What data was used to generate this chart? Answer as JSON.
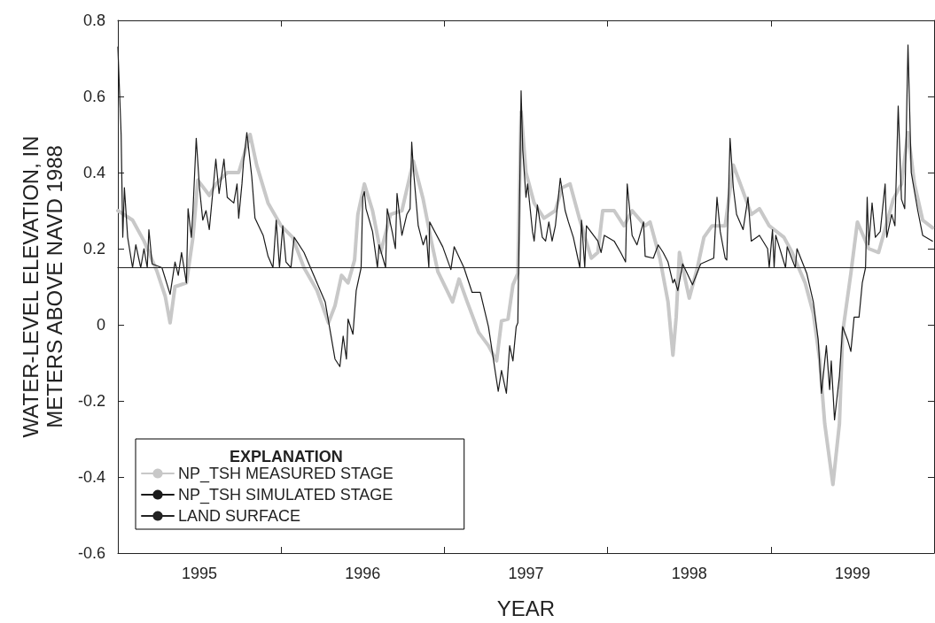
{
  "chart_data": {
    "type": "line",
    "xlabel": "YEAR",
    "ylabel": "WATER-LEVEL ELEVATION, IN METERS ABOVE NAVD 1988",
    "legend_title": "EXPLANATION",
    "legend": "bottom left",
    "grid": false,
    "xlim": [
      1995,
      2000
    ],
    "xticks": [
      {
        "value": 1995.5,
        "label": "1995"
      },
      {
        "value": 1996.5,
        "label": "1996"
      },
      {
        "value": 1997.5,
        "label": "1997"
      },
      {
        "value": 1998.5,
        "label": "1998"
      },
      {
        "value": 1999.5,
        "label": "1999"
      },
      {
        "value": 1996,
        "label": null
      },
      {
        "value": 1997,
        "label": null
      },
      {
        "value": 1998,
        "label": null
      },
      {
        "value": 1999,
        "label": null
      }
    ],
    "ylim": [
      -0.6,
      0.8
    ],
    "yticks": [
      -0.6,
      -0.4,
      -0.2,
      0,
      0.2,
      0.4,
      0.6,
      0.8
    ],
    "series": [
      {
        "name": "NP_TSH MEASURED STAGE",
        "color": "#c8c8c8",
        "x": [
          1995.0,
          1995.09,
          1995.16,
          1995.24,
          1995.29,
          1995.32,
          1995.35,
          1995.42,
          1995.46,
          1995.49,
          1995.56,
          1995.6,
          1995.67,
          1995.74,
          1995.81,
          1995.85,
          1995.92,
          1996.0,
          1996.07,
          1996.14,
          1996.22,
          1996.29,
          1996.33,
          1996.37,
          1996.41,
          1996.45,
          1996.47,
          1996.51,
          1996.56,
          1996.61,
          1996.67,
          1996.74,
          1996.81,
          1996.87,
          1996.92,
          1996.96,
          1997.05,
          1997.09,
          1997.14,
          1997.21,
          1997.27,
          1997.32,
          1997.35,
          1997.39,
          1997.42,
          1997.45,
          1997.47,
          1997.5,
          1997.55,
          1997.61,
          1997.68,
          1997.72,
          1997.77,
          1997.83,
          1997.9,
          1997.94,
          1997.97,
          1998.04,
          1998.1,
          1998.15,
          1998.23,
          1998.26,
          1998.32,
          1998.37,
          1998.4,
          1998.42,
          1998.44,
          1998.5,
          1998.55,
          1998.59,
          1998.64,
          1998.72,
          1998.77,
          1998.83,
          1998.88,
          1998.93,
          1998.99,
          1999.08,
          1999.13,
          1999.21,
          1999.26,
          1999.3,
          1999.33,
          1999.38,
          1999.42,
          1999.44,
          1999.49,
          1999.53,
          1999.6,
          1999.66,
          1999.75,
          1999.8,
          1999.84,
          1999.88,
          1999.93,
          1999.99
        ],
        "values": [
          0.3,
          0.275,
          0.22,
          0.14,
          0.075,
          0.005,
          0.1,
          0.11,
          0.23,
          0.38,
          0.34,
          0.37,
          0.4,
          0.4,
          0.5,
          0.42,
          0.32,
          0.26,
          0.23,
          0.15,
          0.09,
          0.005,
          0.05,
          0.13,
          0.11,
          0.17,
          0.29,
          0.37,
          0.3,
          0.19,
          0.29,
          0.3,
          0.43,
          0.33,
          0.22,
          0.14,
          0.06,
          0.12,
          0.06,
          -0.02,
          -0.055,
          -0.095,
          0.01,
          0.015,
          0.105,
          0.135,
          0.56,
          0.4,
          0.32,
          0.28,
          0.3,
          0.36,
          0.37,
          0.275,
          0.175,
          0.19,
          0.3,
          0.3,
          0.26,
          0.3,
          0.26,
          0.27,
          0.175,
          0.06,
          -0.08,
          0.02,
          0.19,
          0.07,
          0.15,
          0.23,
          0.26,
          0.26,
          0.42,
          0.35,
          0.29,
          0.305,
          0.26,
          0.23,
          0.19,
          0.11,
          0.03,
          -0.095,
          -0.26,
          -0.42,
          -0.26,
          -0.02,
          0.135,
          0.27,
          0.2,
          0.19,
          0.33,
          0.37,
          0.505,
          0.37,
          0.275,
          0.255
        ]
      },
      {
        "name": "NP_TSH SIMULATED STAGE",
        "color": "#1a1a1a",
        "x": [
          1995.0,
          1995.02,
          1995.03,
          1995.04,
          1995.06,
          1995.09,
          1995.11,
          1995.14,
          1995.16,
          1995.18,
          1995.19,
          1995.21,
          1995.27,
          1995.32,
          1995.35,
          1995.37,
          1995.39,
          1995.42,
          1995.43,
          1995.45,
          1995.46,
          1995.48,
          1995.5,
          1995.52,
          1995.54,
          1995.56,
          1995.6,
          1995.62,
          1995.65,
          1995.67,
          1995.71,
          1995.73,
          1995.74,
          1995.76,
          1995.77,
          1995.79,
          1995.82,
          1995.84,
          1995.89,
          1995.92,
          1995.95,
          1995.97,
          1995.99,
          1996.01,
          1996.03,
          1996.06,
          1996.08,
          1996.14,
          1996.22,
          1996.27,
          1996.33,
          1996.36,
          1996.38,
          1996.4,
          1996.41,
          1996.44,
          1996.46,
          1996.49,
          1996.5,
          1996.51,
          1996.52,
          1996.56,
          1996.59,
          1996.6,
          1996.64,
          1996.65,
          1996.68,
          1996.7,
          1996.71,
          1996.74,
          1996.77,
          1996.79,
          1996.8,
          1996.81,
          1996.84,
          1996.87,
          1996.89,
          1996.905,
          1996.91,
          1996.99,
          1997.04,
          1997.06,
          1997.12,
          1997.17,
          1997.22,
          1997.27,
          1997.3,
          1997.33,
          1997.35,
          1997.38,
          1997.4,
          1997.42,
          1997.44,
          1997.45,
          1997.47,
          1997.48,
          1997.5,
          1997.51,
          1997.54,
          1997.55,
          1997.57,
          1997.6,
          1997.62,
          1997.64,
          1997.66,
          1997.68,
          1997.71,
          1997.74,
          1997.76,
          1997.79,
          1997.83,
          1997.84,
          1997.86,
          1997.87,
          1997.94,
          1997.96,
          1997.98,
          1998.04,
          1998.08,
          1998.11,
          1998.12,
          1998.15,
          1998.18,
          1998.22,
          1998.23,
          1998.28,
          1998.31,
          1998.34,
          1998.37,
          1998.4,
          1998.41,
          1998.43,
          1998.46,
          1998.52,
          1998.57,
          1998.65,
          1998.67,
          1998.69,
          1998.72,
          1998.73,
          1998.75,
          1998.77,
          1998.79,
          1998.83,
          1998.86,
          1998.88,
          1998.93,
          1998.98,
          1998.99,
          1999.01,
          1999.02,
          1999.03,
          1999.09,
          1999.1,
          1999.15,
          1999.16,
          1999.22,
          1999.26,
          1999.29,
          1999.31,
          1999.34,
          1999.36,
          1999.37,
          1999.39,
          1999.42,
          1999.44,
          1999.47,
          1999.49,
          1999.51,
          1999.54,
          1999.56,
          1999.58,
          1999.59,
          1999.6,
          1999.62,
          1999.64,
          1999.67,
          1999.7,
          1999.71,
          1999.74,
          1999.76,
          1999.78,
          1999.8,
          1999.82,
          1999.84,
          1999.86,
          1999.9,
          1999.93,
          1999.99
        ],
        "values": [
          0.73,
          0.5,
          0.23,
          0.36,
          0.23,
          0.15,
          0.21,
          0.15,
          0.2,
          0.15,
          0.25,
          0.16,
          0.15,
          0.08,
          0.165,
          0.13,
          0.19,
          0.11,
          0.305,
          0.23,
          0.3,
          0.49,
          0.36,
          0.275,
          0.3,
          0.25,
          0.435,
          0.345,
          0.435,
          0.335,
          0.32,
          0.37,
          0.28,
          0.37,
          0.43,
          0.505,
          0.39,
          0.28,
          0.235,
          0.18,
          0.15,
          0.275,
          0.15,
          0.26,
          0.165,
          0.15,
          0.23,
          0.19,
          0.11,
          0.06,
          -0.09,
          -0.11,
          -0.03,
          -0.09,
          0.015,
          -0.025,
          0.09,
          0.15,
          0.335,
          0.35,
          0.305,
          0.245,
          0.15,
          0.21,
          0.15,
          0.305,
          0.245,
          0.2,
          0.345,
          0.235,
          0.29,
          0.305,
          0.48,
          0.41,
          0.26,
          0.21,
          0.235,
          0.15,
          0.27,
          0.205,
          0.145,
          0.205,
          0.15,
          0.085,
          0.085,
          -0.005,
          -0.09,
          -0.175,
          -0.12,
          -0.18,
          -0.055,
          -0.095,
          -0.005,
          0.005,
          0.615,
          0.46,
          0.335,
          0.37,
          0.245,
          0.22,
          0.315,
          0.23,
          0.22,
          0.27,
          0.22,
          0.26,
          0.385,
          0.3,
          0.27,
          0.23,
          0.15,
          0.275,
          0.15,
          0.26,
          0.22,
          0.19,
          0.235,
          0.22,
          0.19,
          0.165,
          0.37,
          0.235,
          0.21,
          0.27,
          0.18,
          0.175,
          0.21,
          0.19,
          0.165,
          0.11,
          0.12,
          0.09,
          0.16,
          0.105,
          0.16,
          0.175,
          0.335,
          0.245,
          0.175,
          0.17,
          0.49,
          0.36,
          0.29,
          0.25,
          0.335,
          0.22,
          0.235,
          0.2,
          0.15,
          0.25,
          0.15,
          0.235,
          0.15,
          0.205,
          0.15,
          0.2,
          0.135,
          0.06,
          -0.04,
          -0.18,
          -0.055,
          -0.17,
          -0.095,
          -0.25,
          -0.135,
          -0.005,
          -0.04,
          -0.07,
          0.02,
          0.02,
          0.11,
          0.15,
          0.335,
          0.21,
          0.32,
          0.23,
          0.245,
          0.37,
          0.23,
          0.29,
          0.26,
          0.575,
          0.33,
          0.305,
          0.735,
          0.4,
          0.3,
          0.235,
          0.22
        ]
      },
      {
        "name": "LAND SURFACE",
        "color": "#222222",
        "x": [
          1995,
          2000
        ],
        "values": [
          0.15,
          0.15
        ]
      }
    ]
  }
}
